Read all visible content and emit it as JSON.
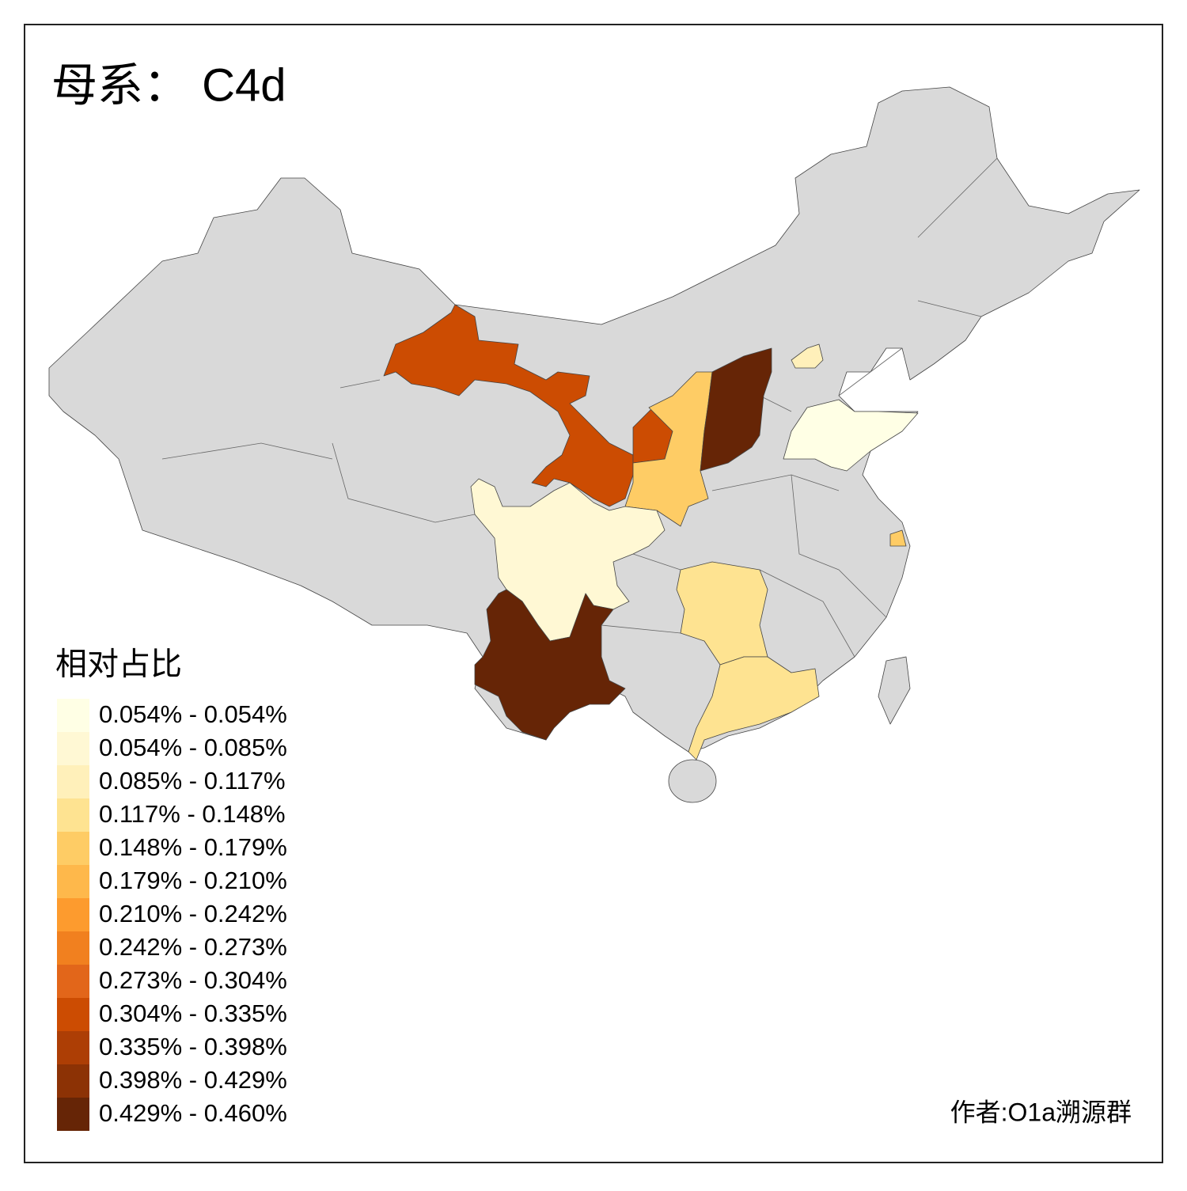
{
  "title": "母系： C4d",
  "legend": {
    "title": "相对占比",
    "items": [
      {
        "label": "0.054% - 0.054%",
        "color": "#ffffe5"
      },
      {
        "label": "0.054% - 0.085%",
        "color": "#fff8d4"
      },
      {
        "label": "0.085% - 0.117%",
        "color": "#fff0ba"
      },
      {
        "label": "0.117% - 0.148%",
        "color": "#fee391"
      },
      {
        "label": "0.148% - 0.179%",
        "color": "#fecc65"
      },
      {
        "label": "0.179% - 0.210%",
        "color": "#feb84b"
      },
      {
        "label": "0.210% - 0.242%",
        "color": "#fd9b2e"
      },
      {
        "label": "0.242% - 0.273%",
        "color": "#f1801f"
      },
      {
        "label": "0.273% - 0.304%",
        "color": "#e2661a"
      },
      {
        "label": "0.304% - 0.335%",
        "color": "#cc4c02"
      },
      {
        "label": "0.335% - 0.398%",
        "color": "#ad3e05"
      },
      {
        "label": "0.398% - 0.429%",
        "color": "#8c3205"
      },
      {
        "label": "0.429% - 0.460%",
        "color": "#662506"
      }
    ]
  },
  "credit": "作者:O1a溯源群"
}
